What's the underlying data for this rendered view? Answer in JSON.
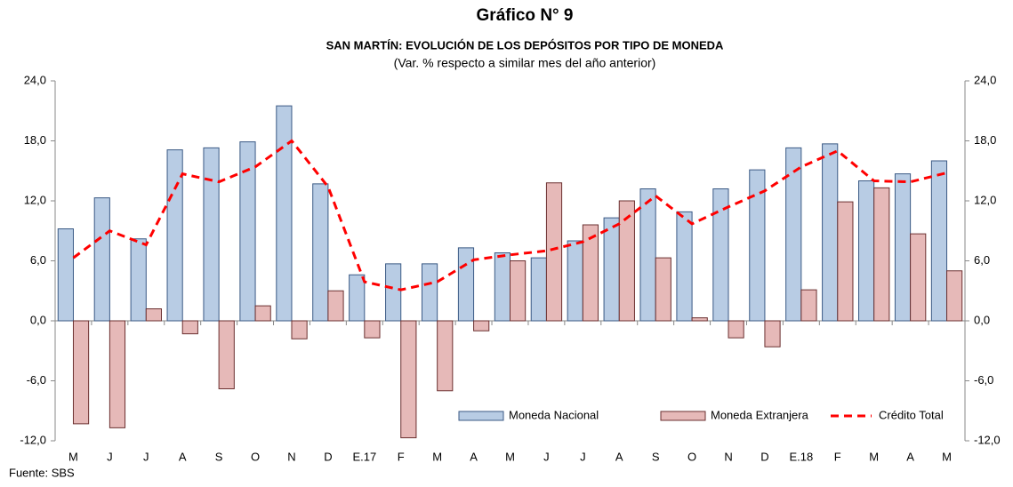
{
  "chart_data": {
    "type": "bar",
    "title": "Gráfico N° 9",
    "subtitle": "SAN MARTÍN: EVOLUCIÓN DE LOS DEPÓSITOS POR TIPO DE MONEDA",
    "note": "(Var. % respecto a similar mes del año anterior)",
    "source": "Fuente: SBS",
    "categories": [
      "M",
      "J",
      "J",
      "A",
      "S",
      "O",
      "N",
      "D",
      "E.17",
      "F",
      "M",
      "A",
      "M",
      "J",
      "J",
      "A",
      "S",
      "O",
      "N",
      "D",
      "E.18",
      "F",
      "M",
      "A",
      "M"
    ],
    "series": [
      {
        "name": "Moneda Nacional",
        "type": "bar",
        "color": "#b8cce4",
        "values": [
          9.2,
          12.3,
          8.2,
          17.1,
          17.3,
          17.9,
          21.5,
          13.7,
          4.6,
          5.7,
          5.7,
          7.3,
          6.8,
          6.3,
          8.0,
          10.3,
          13.2,
          10.9,
          13.2,
          15.1,
          17.3,
          17.7,
          14.0,
          14.7,
          16.0
        ]
      },
      {
        "name": "Moneda Extranjera",
        "type": "bar",
        "color": "#e6b9b8",
        "values": [
          -10.3,
          -10.7,
          1.2,
          -1.3,
          -6.8,
          1.5,
          -1.8,
          3.0,
          -1.7,
          -11.7,
          -7.0,
          -1.0,
          6.0,
          13.8,
          9.6,
          12.0,
          6.3,
          0.3,
          -1.7,
          -2.6,
          3.1,
          11.9,
          13.3,
          8.7,
          5.0
        ]
      },
      {
        "name": "Crédito Total",
        "type": "line",
        "color": "#ff0000",
        "values": [
          6.3,
          9.0,
          7.6,
          14.7,
          13.9,
          15.4,
          18.0,
          13.4,
          3.9,
          3.1,
          3.9,
          6.1,
          6.6,
          7.0,
          7.9,
          9.7,
          12.5,
          9.7,
          11.4,
          13.0,
          15.4,
          17.0,
          14.0,
          13.9,
          14.8
        ]
      }
    ],
    "ylim": [
      -12,
      24
    ],
    "yticks": [
      {
        "value": -12,
        "label": "-12,0"
      },
      {
        "value": -6,
        "label": "-6,0"
      },
      {
        "value": 0,
        "label": "0,0"
      },
      {
        "value": 6,
        "label": "6,0"
      },
      {
        "value": 12,
        "label": "12,0"
      },
      {
        "value": 18,
        "label": "18,0"
      },
      {
        "value": 24,
        "label": "24,0"
      }
    ],
    "y2lim": [
      -12,
      24
    ],
    "y2ticks": [
      {
        "value": -12,
        "label": "-12,0"
      },
      {
        "value": -6,
        "label": "-6,0"
      },
      {
        "value": 0,
        "label": "0,0"
      },
      {
        "value": 6,
        "label": "6,0"
      },
      {
        "value": 12,
        "label": "12,0"
      },
      {
        "value": 18,
        "label": "18,0"
      },
      {
        "value": 24,
        "label": "24,0"
      }
    ],
    "grid": false,
    "legend": "lower-right"
  }
}
